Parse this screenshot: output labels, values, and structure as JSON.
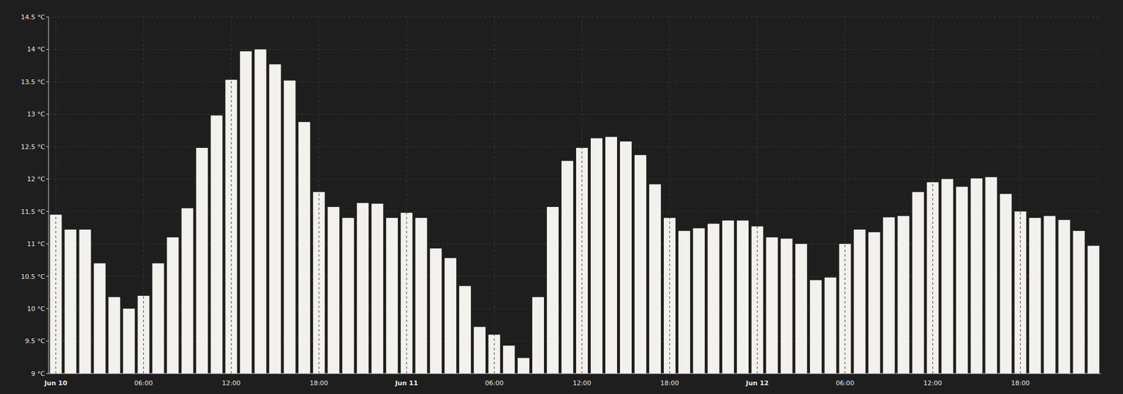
{
  "chart_data": {
    "type": "bar",
    "categories": [
      "Jun 10",
      null,
      null,
      null,
      null,
      null,
      "06:00",
      null,
      null,
      null,
      null,
      null,
      "12:00",
      null,
      null,
      null,
      null,
      null,
      "18:00",
      null,
      null,
      null,
      null,
      null,
      "Jun 11",
      null,
      null,
      null,
      null,
      null,
      "06:00",
      null,
      null,
      null,
      null,
      null,
      "12:00",
      null,
      null,
      null,
      null,
      null,
      "18:00",
      null,
      null,
      null,
      null,
      null,
      "Jun 12",
      null,
      null,
      null,
      null,
      null,
      "06:00",
      null,
      null,
      null,
      null,
      null,
      "12:00",
      null,
      null,
      null,
      null,
      null,
      "18:00",
      null,
      null,
      null,
      null,
      null
    ],
    "values": [
      11.45,
      11.22,
      11.22,
      10.7,
      10.18,
      10.0,
      10.2,
      10.7,
      11.1,
      11.55,
      12.48,
      12.98,
      13.53,
      13.97,
      14.0,
      13.77,
      13.52,
      12.88,
      11.8,
      11.57,
      11.4,
      11.63,
      11.62,
      11.4,
      11.48,
      11.4,
      10.93,
      10.78,
      10.35,
      9.72,
      9.6,
      9.43,
      9.24,
      10.18,
      11.57,
      12.28,
      12.48,
      12.63,
      12.65,
      12.58,
      12.37,
      11.92,
      11.4,
      11.2,
      11.24,
      11.31,
      11.36,
      11.36,
      11.27,
      11.1,
      11.08,
      11.0,
      10.44,
      10.48,
      11.0,
      11.22,
      11.18,
      11.41,
      11.43,
      11.8,
      11.95,
      12.0,
      11.88,
      12.01,
      12.03,
      11.77,
      11.5,
      11.4,
      11.43,
      11.37,
      11.2,
      10.97
    ],
    "color": "#f2f1ed",
    "ylim": [
      9,
      14.5
    ],
    "yticks": [
      {
        "value": 9,
        "label": "9 °C"
      },
      {
        "value": 9.5,
        "label": "9.5 °C"
      },
      {
        "value": 10,
        "label": "10 °C"
      },
      {
        "value": 10.5,
        "label": "10.5 °C"
      },
      {
        "value": 11,
        "label": "11 °C"
      },
      {
        "value": 11.5,
        "label": "11.5 °C"
      },
      {
        "value": 12,
        "label": "12 °C"
      },
      {
        "value": 12.5,
        "label": "12.5 °C"
      },
      {
        "value": 13,
        "label": "13 °C"
      },
      {
        "value": 13.5,
        "label": "13.5 °C"
      },
      {
        "value": 14,
        "label": "14 °C"
      },
      {
        "value": 14.5,
        "label": "14.5 °C"
      }
    ],
    "grid": true
  }
}
